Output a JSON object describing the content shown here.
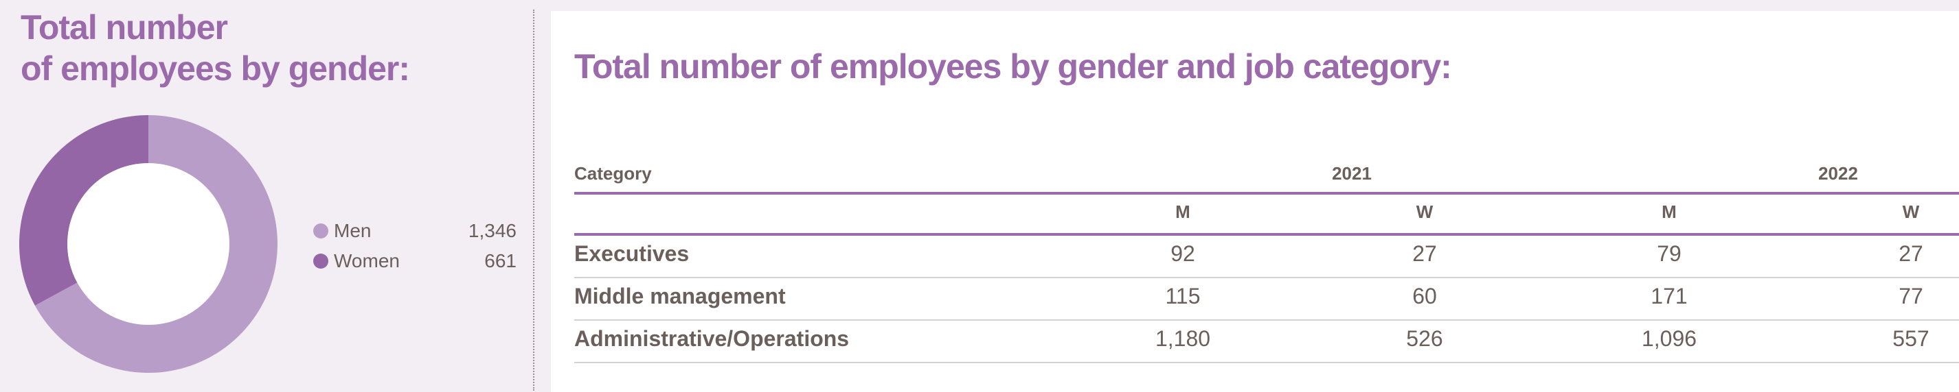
{
  "left": {
    "title_line1": "Total number",
    "title_line2": "of employees by gender:"
  },
  "right": {
    "title": "Total number of employees by gender and job category:"
  },
  "colors": {
    "men": "#b89dc8",
    "women": "#9466a6",
    "accent": "#9a6aaa"
  },
  "chart_data": [
    {
      "type": "pie",
      "title": "Total number of employees by gender:",
      "categories": [
        "Men",
        "Women"
      ],
      "values": [
        1346,
        661
      ],
      "value_labels": [
        "1,346",
        "661"
      ],
      "legend_placement": "right"
    },
    {
      "type": "table",
      "title": "Total number of employees by gender and job category:",
      "header": {
        "category": "Category",
        "years": [
          "2021",
          "2022"
        ],
        "subcols": [
          "M",
          "W",
          "M",
          "W"
        ]
      },
      "rows": [
        {
          "label": "Executives",
          "values": [
            "92",
            "27",
            "79",
            "27"
          ]
        },
        {
          "label": "Middle management",
          "values": [
            "115",
            "60",
            "171",
            "77"
          ]
        },
        {
          "label": "Administrative/Operations",
          "values": [
            "1,180",
            "526",
            "1,096",
            "557"
          ]
        }
      ]
    }
  ]
}
